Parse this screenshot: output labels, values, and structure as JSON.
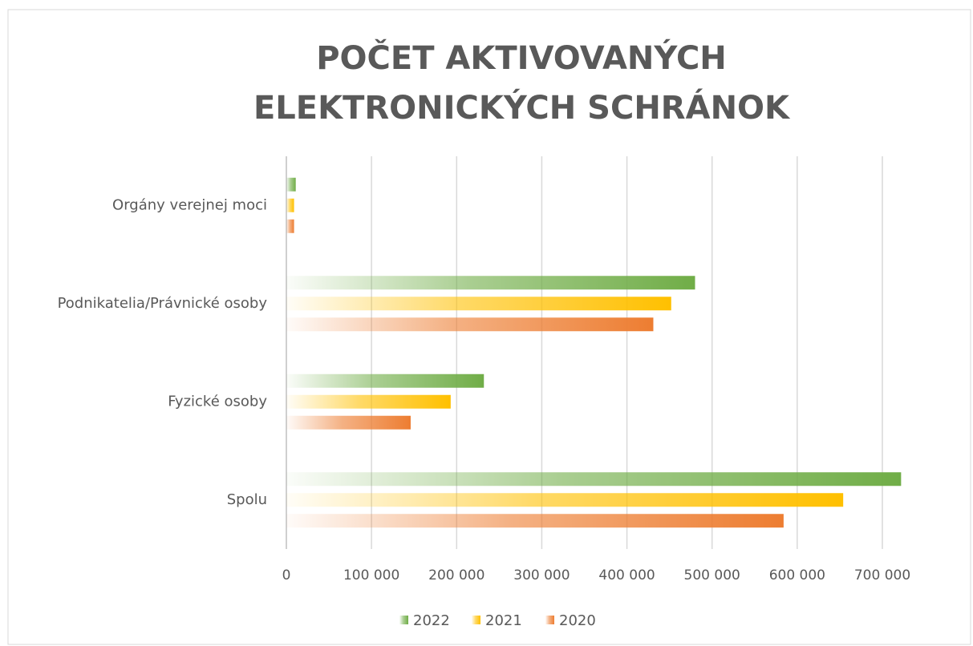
{
  "chart_data": {
    "type": "bar",
    "orientation": "horizontal",
    "title": "POČET AKTIVOVANÝCH ELEKTRONICKÝCH SCHRÁNOK",
    "categories": [
      "Orgány verejnej moci",
      "Podnikatelia/Právnické osoby",
      "Fyzické osoby",
      "Spolu"
    ],
    "series": [
      {
        "name": "2022",
        "color": "#70ad47",
        "values": [
          11000,
          480000,
          232000,
          722000
        ]
      },
      {
        "name": "2021",
        "color": "#ffc000",
        "values": [
          9000,
          452000,
          193000,
          654000
        ]
      },
      {
        "name": "2020",
        "color": "#ed7d31",
        "values": [
          9000,
          431000,
          146000,
          584000
        ]
      }
    ],
    "xlim": [
      0,
      700000
    ],
    "xticks": [
      0,
      {
        "value": 100000,
        "label": "100 000"
      },
      {
        "value": 200000,
        "label": "200 000"
      },
      {
        "value": 300000,
        "label": "300 000"
      },
      {
        "value": 400000,
        "label": "400 000"
      },
      {
        "value": 500000,
        "label": "500 000"
      },
      {
        "value": 600000,
        "label": "600 000"
      },
      {
        "value": 700000,
        "label": "700 000"
      }
    ],
    "grid": true,
    "legend": "bottom"
  }
}
